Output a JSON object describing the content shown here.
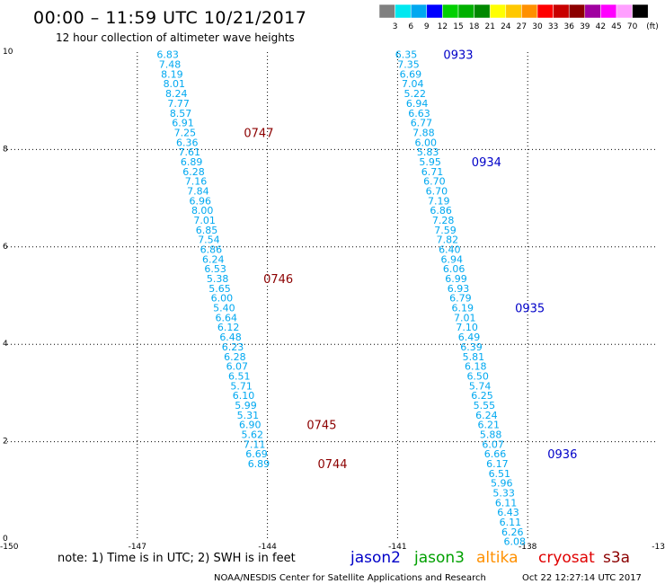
{
  "header": {
    "title": "00:00 – 11:59 UTC 10/21/2017",
    "subtitle": "12 hour collection of altimeter wave heights"
  },
  "legend": {
    "unit": "(ft)",
    "items": [
      {
        "label": "3",
        "color": "#808080"
      },
      {
        "label": "6",
        "color": "#00e8f0"
      },
      {
        "label": "9",
        "color": "#00a8f0"
      },
      {
        "label": "12",
        "color": "#0000ff"
      },
      {
        "label": "15",
        "color": "#00d000"
      },
      {
        "label": "18",
        "color": "#00b000"
      },
      {
        "label": "21",
        "color": "#008800"
      },
      {
        "label": "24",
        "color": "#ffff00"
      },
      {
        "label": "27",
        "color": "#ffc800"
      },
      {
        "label": "30",
        "color": "#ff9000"
      },
      {
        "label": "33",
        "color": "#ff0000"
      },
      {
        "label": "36",
        "color": "#c80000"
      },
      {
        "label": "39",
        "color": "#8c0000"
      },
      {
        "label": "42",
        "color": "#a000a0"
      },
      {
        "label": "45",
        "color": "#ff00ff"
      },
      {
        "label": "70",
        "color": "#ffa0ff"
      },
      {
        "label": "",
        "color": "#000000"
      }
    ]
  },
  "axes": {
    "x_ticks": [
      "-150",
      "-147",
      "-144",
      "-141",
      "-138",
      "-13"
    ],
    "y_ticks": [
      "0",
      "2",
      "4",
      "6",
      "8",
      "10"
    ]
  },
  "chart_data": {
    "type": "scatter",
    "xlim": [
      -150,
      -135
    ],
    "ylim": [
      0,
      10
    ],
    "colors": {
      "value": "#00a8f0",
      "track1_time": "#8c0000",
      "track2_time": "#0000c8"
    },
    "tracks": [
      {
        "satellite": "s3a",
        "values": [
          {
            "lon": -146.3,
            "lat": 9.95,
            "v": "6.83"
          },
          {
            "lon": -146.25,
            "lat": 9.75,
            "v": "7.48"
          },
          {
            "lon": -146.2,
            "lat": 9.55,
            "v": "8.19"
          },
          {
            "lon": -146.15,
            "lat": 9.35,
            "v": "8.01"
          },
          {
            "lon": -146.1,
            "lat": 9.15,
            "v": "8.24"
          },
          {
            "lon": -146.05,
            "lat": 8.95,
            "v": "7.77"
          },
          {
            "lon": -146.0,
            "lat": 8.75,
            "v": "8.57"
          },
          {
            "lon": -145.95,
            "lat": 8.55,
            "v": "6.91"
          },
          {
            "lon": -145.9,
            "lat": 8.35,
            "v": "7.25"
          },
          {
            "lon": -145.85,
            "lat": 8.15,
            "v": "6.36"
          },
          {
            "lon": -145.8,
            "lat": 7.95,
            "v": "7.61"
          },
          {
            "lon": -145.75,
            "lat": 7.75,
            "v": "6.89"
          },
          {
            "lon": -145.7,
            "lat": 7.55,
            "v": "6.28"
          },
          {
            "lon": -145.65,
            "lat": 7.35,
            "v": "7.16"
          },
          {
            "lon": -145.6,
            "lat": 7.15,
            "v": "7.84"
          },
          {
            "lon": -145.55,
            "lat": 6.95,
            "v": "6.96"
          },
          {
            "lon": -145.5,
            "lat": 6.75,
            "v": "8.00"
          },
          {
            "lon": -145.45,
            "lat": 6.55,
            "v": "7.01"
          },
          {
            "lon": -145.4,
            "lat": 6.35,
            "v": "6.85"
          },
          {
            "lon": -145.35,
            "lat": 6.15,
            "v": "7.54"
          },
          {
            "lon": -145.3,
            "lat": 5.95,
            "v": "6.86"
          },
          {
            "lon": -145.25,
            "lat": 5.75,
            "v": "6.24"
          },
          {
            "lon": -145.2,
            "lat": 5.55,
            "v": "6.53"
          },
          {
            "lon": -145.15,
            "lat": 5.35,
            "v": "5.38"
          },
          {
            "lon": -145.1,
            "lat": 5.15,
            "v": "5.65"
          },
          {
            "lon": -145.05,
            "lat": 4.95,
            "v": "6.00"
          },
          {
            "lon": -145.0,
            "lat": 4.75,
            "v": "5.40"
          },
          {
            "lon": -144.95,
            "lat": 4.55,
            "v": "6.64"
          },
          {
            "lon": -144.9,
            "lat": 4.35,
            "v": "6.12"
          },
          {
            "lon": -144.85,
            "lat": 4.15,
            "v": "6.48"
          },
          {
            "lon": -144.8,
            "lat": 3.95,
            "v": "6.23"
          },
          {
            "lon": -144.75,
            "lat": 3.75,
            "v": "6.28"
          },
          {
            "lon": -144.7,
            "lat": 3.55,
            "v": "6.07"
          },
          {
            "lon": -144.65,
            "lat": 3.35,
            "v": "6.51"
          },
          {
            "lon": -144.6,
            "lat": 3.15,
            "v": "5.71"
          },
          {
            "lon": -144.55,
            "lat": 2.95,
            "v": "6.10"
          },
          {
            "lon": -144.5,
            "lat": 2.75,
            "v": "5.99"
          },
          {
            "lon": -144.45,
            "lat": 2.55,
            "v": "5.31"
          },
          {
            "lon": -144.4,
            "lat": 2.35,
            "v": "6.90"
          },
          {
            "lon": -144.35,
            "lat": 2.15,
            "v": "5.62"
          },
          {
            "lon": -144.3,
            "lat": 1.95,
            "v": "7.11"
          },
          {
            "lon": -144.25,
            "lat": 1.75,
            "v": "6.69"
          },
          {
            "lon": -144.2,
            "lat": 1.55,
            "v": "6.89"
          }
        ],
        "times": [
          {
            "lon": -144.2,
            "lat": 8.35,
            "t": "0747"
          },
          {
            "lon": -143.75,
            "lat": 5.35,
            "t": "0746"
          },
          {
            "lon": -142.75,
            "lat": 2.35,
            "t": "0745"
          },
          {
            "lon": -142.5,
            "lat": 1.55,
            "t": "0744"
          }
        ]
      },
      {
        "satellite": "jason2",
        "values": [
          {
            "lon": -140.8,
            "lat": 9.95,
            "v": "6.35"
          },
          {
            "lon": -140.75,
            "lat": 9.75,
            "v": "7.35"
          },
          {
            "lon": -140.7,
            "lat": 9.55,
            "v": "6.69"
          },
          {
            "lon": -140.65,
            "lat": 9.35,
            "v": "7.04"
          },
          {
            "lon": -140.6,
            "lat": 9.15,
            "v": "5.22"
          },
          {
            "lon": -140.55,
            "lat": 8.95,
            "v": "6.94"
          },
          {
            "lon": -140.5,
            "lat": 8.75,
            "v": "6.63"
          },
          {
            "lon": -140.45,
            "lat": 8.55,
            "v": "6.77"
          },
          {
            "lon": -140.4,
            "lat": 8.35,
            "v": "7.88"
          },
          {
            "lon": -140.35,
            "lat": 8.15,
            "v": "6.00"
          },
          {
            "lon": -140.3,
            "lat": 7.95,
            "v": "5.83"
          },
          {
            "lon": -140.25,
            "lat": 7.75,
            "v": "5.95"
          },
          {
            "lon": -140.2,
            "lat": 7.55,
            "v": "6.71"
          },
          {
            "lon": -140.15,
            "lat": 7.35,
            "v": "6.70"
          },
          {
            "lon": -140.1,
            "lat": 7.15,
            "v": "6.70"
          },
          {
            "lon": -140.05,
            "lat": 6.95,
            "v": "7.19"
          },
          {
            "lon": -140.0,
            "lat": 6.75,
            "v": "6.86"
          },
          {
            "lon": -139.95,
            "lat": 6.55,
            "v": "7.28"
          },
          {
            "lon": -139.9,
            "lat": 6.35,
            "v": "7.59"
          },
          {
            "lon": -139.85,
            "lat": 6.15,
            "v": "7.82"
          },
          {
            "lon": -139.8,
            "lat": 5.95,
            "v": "6.40"
          },
          {
            "lon": -139.75,
            "lat": 5.75,
            "v": "6.94"
          },
          {
            "lon": -139.7,
            "lat": 5.55,
            "v": "6.06"
          },
          {
            "lon": -139.65,
            "lat": 5.35,
            "v": "6.99"
          },
          {
            "lon": -139.6,
            "lat": 5.15,
            "v": "6.93"
          },
          {
            "lon": -139.55,
            "lat": 4.95,
            "v": "6.79"
          },
          {
            "lon": -139.5,
            "lat": 4.75,
            "v": "6.19"
          },
          {
            "lon": -139.45,
            "lat": 4.55,
            "v": "7.01"
          },
          {
            "lon": -139.4,
            "lat": 4.35,
            "v": "7.10"
          },
          {
            "lon": -139.35,
            "lat": 4.15,
            "v": "6.49"
          },
          {
            "lon": -139.3,
            "lat": 3.95,
            "v": "6.39"
          },
          {
            "lon": -139.25,
            "lat": 3.75,
            "v": "5.81"
          },
          {
            "lon": -139.2,
            "lat": 3.55,
            "v": "6.18"
          },
          {
            "lon": -139.15,
            "lat": 3.35,
            "v": "6.50"
          },
          {
            "lon": -139.1,
            "lat": 3.15,
            "v": "5.74"
          },
          {
            "lon": -139.05,
            "lat": 2.95,
            "v": "6.25"
          },
          {
            "lon": -139.0,
            "lat": 2.75,
            "v": "5.55"
          },
          {
            "lon": -138.95,
            "lat": 2.55,
            "v": "6.24"
          },
          {
            "lon": -138.9,
            "lat": 2.35,
            "v": "6.21"
          },
          {
            "lon": -138.85,
            "lat": 2.15,
            "v": "5.88"
          },
          {
            "lon": -138.8,
            "lat": 1.95,
            "v": "6.07"
          },
          {
            "lon": -138.75,
            "lat": 1.75,
            "v": "6.66"
          },
          {
            "lon": -138.7,
            "lat": 1.55,
            "v": "6.17"
          },
          {
            "lon": -138.65,
            "lat": 1.35,
            "v": "6.51"
          },
          {
            "lon": -138.6,
            "lat": 1.15,
            "v": "5.96"
          },
          {
            "lon": -138.55,
            "lat": 0.95,
            "v": "5.33"
          },
          {
            "lon": -138.5,
            "lat": 0.75,
            "v": "6.11"
          },
          {
            "lon": -138.45,
            "lat": 0.55,
            "v": "6.43"
          },
          {
            "lon": -138.4,
            "lat": 0.35,
            "v": "6.11"
          },
          {
            "lon": -138.35,
            "lat": 0.15,
            "v": "6.26"
          },
          {
            "lon": -138.3,
            "lat": -0.05,
            "v": "6.08"
          }
        ],
        "times": [
          {
            "lon": -139.6,
            "lat": 9.95,
            "t": "0933"
          },
          {
            "lon": -138.95,
            "lat": 7.75,
            "t": "0934"
          },
          {
            "lon": -137.95,
            "lat": 4.75,
            "t": "0935"
          },
          {
            "lon": -137.2,
            "lat": 1.75,
            "t": "0936"
          }
        ]
      }
    ]
  },
  "notes": {
    "text": "note: 1) Time is in UTC; 2) SWH is in feet",
    "satellites": [
      {
        "name": "jason2",
        "color": "#0000c8"
      },
      {
        "name": "jason3",
        "color": "#00a000"
      },
      {
        "name": "altika",
        "color": "#ff9000"
      },
      {
        "name": "cryosat",
        "color": "#e00000"
      },
      {
        "name": "s3a",
        "color": "#8c0000"
      }
    ]
  },
  "footer": {
    "left": "NOAA/NESDIS Center for Satellite Applications and Research",
    "right": "Oct 22 12:27:14 UTC 2017"
  }
}
